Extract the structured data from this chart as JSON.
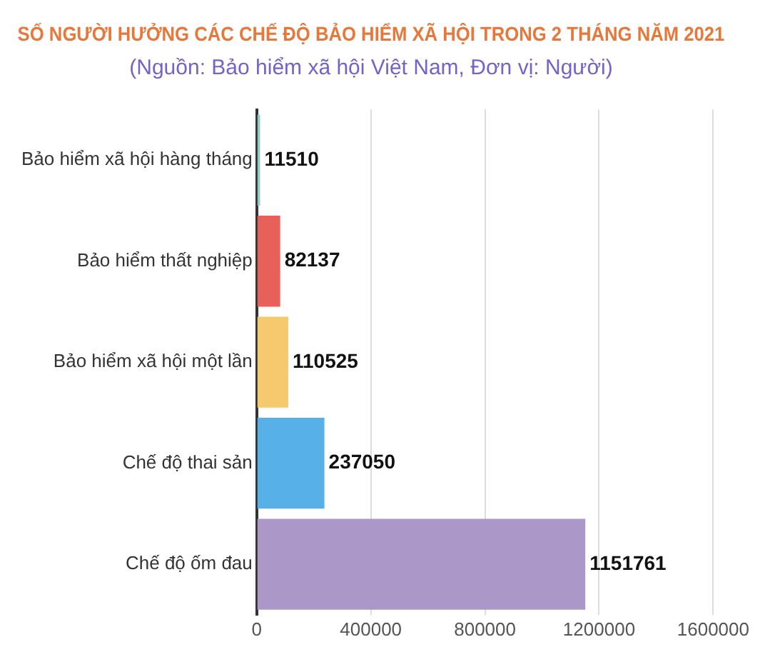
{
  "chart_data": {
    "type": "bar",
    "orientation": "horizontal",
    "title": "SỐ NGƯỜI HƯỞNG CÁC CHẾ ĐỘ BẢO HIỂM XÃ HỘI TRONG 2 THÁNG NĂM 2021",
    "subtitle": "(Nguồn: Bảo hiểm xã hội Việt Nam, Đơn vị: Người)",
    "categories": [
      "Bảo hiểm xã hội hàng tháng",
      "Bảo hiểm thất nghiệp",
      "Bảo hiểm xã hội một lần",
      "Chế độ thai sản",
      "Chế độ ốm đau"
    ],
    "values": [
      11510,
      82137,
      110525,
      237050,
      1151761
    ],
    "colors": [
      "#8fcdc4",
      "#e8605a",
      "#f6c96e",
      "#58b0e8",
      "#ab97c8"
    ],
    "xlim": [
      0,
      1600000
    ],
    "xticks": [
      0,
      400000,
      800000,
      1200000,
      1600000
    ],
    "grid": "x",
    "data_labels": true
  }
}
